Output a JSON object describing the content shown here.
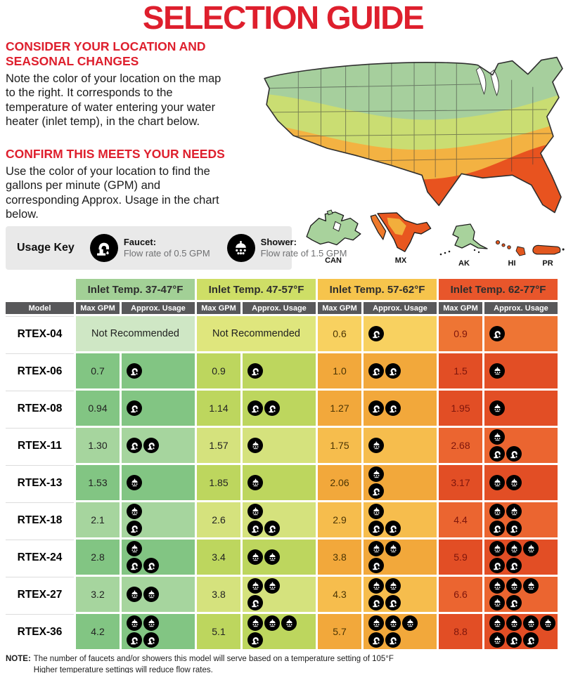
{
  "title": "SELECTION GUIDE",
  "theme": {
    "accent_red": "#de1f2d",
    "header_gray": "#58585a",
    "key_bg": "#e9e9e9"
  },
  "intro": {
    "section1": {
      "heading": "CONSIDER YOUR LOCATION AND SEASONAL CHANGES",
      "body": "Note the color of your location on the map to the right. It corresponds to the temperature of water entering your water heater (inlet temp), in the chart below."
    },
    "section2": {
      "heading": "CONFIRM THIS MEETS YOUR NEEDS",
      "body": "Use the color of your location to find the gallons per minute (GPM) and corresponding Approx. Usage in the chart below."
    }
  },
  "map": {
    "labels": [
      "CAN",
      "MX",
      "AK",
      "HI",
      "PR"
    ],
    "zone_colors": {
      "zone1": "#a6cf9d",
      "zone2": "#cadd72",
      "zone3": "#f3b242",
      "zone4": "#e8531f"
    }
  },
  "usage_key": {
    "label": "Usage Key",
    "faucet_label": "Faucet:",
    "faucet_desc": "Flow rate of 0.5 GPM",
    "shower_label": "Shower:",
    "shower_desc": "Flow rate of 1.5 GPM"
  },
  "table": {
    "model_header": "Model",
    "sub_headers": [
      "Max GPM",
      "Approx. Usage"
    ],
    "not_recommended": "Not Recommended",
    "groups": [
      {
        "label": "Inlet Temp. 37-47°F",
        "colors": {
          "header": "#a2d096",
          "pale": "#cfe7c5",
          "dark": "#82c583",
          "light": "#a6d59e",
          "text": "#222222"
        }
      },
      {
        "label": "Inlet Temp. 47-57°F",
        "colors": {
          "header": "#cede66",
          "pale": "#dfe67d",
          "dark": "#bdd65e",
          "light": "#d5e27d",
          "text": "#222222"
        }
      },
      {
        "label": "Inlet Temp. 57-62°F",
        "colors": {
          "header": "#f6c44c",
          "pale": "#f8d160",
          "dark": "#f2a83b",
          "light": "#f6bd4d",
          "text": "#4a3404"
        }
      },
      {
        "label": "Inlet Temp. 62-77°F",
        "colors": {
          "header": "#e8562b",
          "pale": "#ee7534",
          "dark": "#e24e25",
          "light": "#eb6530",
          "text": "#7d150c"
        }
      }
    ],
    "rows": [
      {
        "model": "RTEX-04",
        "shade": "pale",
        "cells": [
          {
            "nr": true
          },
          {
            "nr": true
          },
          {
            "gpm": "0.6",
            "usage": [
              [
                "faucet"
              ]
            ]
          },
          {
            "gpm": "0.9",
            "usage": [
              [
                "faucet"
              ]
            ]
          }
        ]
      },
      {
        "model": "RTEX-06",
        "shade": "dark",
        "cells": [
          {
            "gpm": "0.7",
            "usage": [
              [
                "faucet"
              ]
            ]
          },
          {
            "gpm": "0.9",
            "usage": [
              [
                "faucet"
              ]
            ]
          },
          {
            "gpm": "1.0",
            "usage": [
              [
                "faucet",
                "faucet"
              ]
            ]
          },
          {
            "gpm": "1.5",
            "usage": [
              [
                "shower"
              ]
            ]
          }
        ]
      },
      {
        "model": "RTEX-08",
        "shade": "dark",
        "cells": [
          {
            "gpm": "0.94",
            "usage": [
              [
                "faucet"
              ]
            ]
          },
          {
            "gpm": "1.14",
            "usage": [
              [
                "faucet",
                "faucet"
              ]
            ]
          },
          {
            "gpm": "1.27",
            "usage": [
              [
                "faucet",
                "faucet"
              ]
            ]
          },
          {
            "gpm": "1.95",
            "usage": [
              [
                "shower"
              ]
            ]
          }
        ]
      },
      {
        "model": "RTEX-11",
        "shade": "light",
        "cells": [
          {
            "gpm": "1.30",
            "usage": [
              [
                "faucet",
                "faucet"
              ]
            ]
          },
          {
            "gpm": "1.57",
            "usage": [
              [
                "shower"
              ]
            ]
          },
          {
            "gpm": "1.75",
            "usage": [
              [
                "shower"
              ]
            ]
          },
          {
            "gpm": "2.68",
            "usage": [
              [
                "shower"
              ],
              [
                "faucet",
                "faucet"
              ]
            ]
          }
        ]
      },
      {
        "model": "RTEX-13",
        "shade": "dark",
        "cells": [
          {
            "gpm": "1.53",
            "usage": [
              [
                "shower"
              ]
            ]
          },
          {
            "gpm": "1.85",
            "usage": [
              [
                "shower"
              ]
            ]
          },
          {
            "gpm": "2.06",
            "usage": [
              [
                "shower"
              ],
              [
                "faucet"
              ]
            ]
          },
          {
            "gpm": "3.17",
            "usage": [
              [
                "shower",
                "shower"
              ]
            ]
          }
        ]
      },
      {
        "model": "RTEX-18",
        "shade": "light",
        "cells": [
          {
            "gpm": "2.1",
            "usage": [
              [
                "shower"
              ],
              [
                "faucet"
              ]
            ]
          },
          {
            "gpm": "2.6",
            "usage": [
              [
                "shower"
              ],
              [
                "faucet",
                "faucet"
              ]
            ]
          },
          {
            "gpm": "2.9",
            "usage": [
              [
                "shower"
              ],
              [
                "faucet",
                "faucet"
              ]
            ]
          },
          {
            "gpm": "4.4",
            "usage": [
              [
                "shower",
                "shower"
              ],
              [
                "faucet",
                "faucet"
              ]
            ]
          }
        ]
      },
      {
        "model": "RTEX-24",
        "shade": "dark",
        "cells": [
          {
            "gpm": "2.8",
            "usage": [
              [
                "shower"
              ],
              [
                "faucet",
                "faucet"
              ]
            ]
          },
          {
            "gpm": "3.4",
            "usage": [
              [
                "shower",
                "shower"
              ]
            ]
          },
          {
            "gpm": "3.8",
            "usage": [
              [
                "shower",
                "shower"
              ],
              [
                "faucet"
              ]
            ]
          },
          {
            "gpm": "5.9",
            "usage": [
              [
                "shower",
                "shower",
                "shower"
              ],
              [
                "faucet",
                "faucet"
              ]
            ]
          }
        ]
      },
      {
        "model": "RTEX-27",
        "shade": "light",
        "cells": [
          {
            "gpm": "3.2",
            "usage": [
              [
                "shower",
                "shower"
              ]
            ]
          },
          {
            "gpm": "3.8",
            "usage": [
              [
                "shower",
                "shower"
              ],
              [
                "faucet"
              ]
            ]
          },
          {
            "gpm": "4.3",
            "usage": [
              [
                "shower",
                "shower"
              ],
              [
                "faucet",
                "faucet"
              ]
            ]
          },
          {
            "gpm": "6.6",
            "usage": [
              [
                "shower",
                "shower",
                "shower"
              ],
              [
                "shower",
                "faucet"
              ]
            ]
          }
        ]
      },
      {
        "model": "RTEX-36",
        "shade": "dark",
        "cells": [
          {
            "gpm": "4.2",
            "usage": [
              [
                "shower",
                "shower"
              ],
              [
                "faucet",
                "faucet"
              ]
            ]
          },
          {
            "gpm": "5.1",
            "usage": [
              [
                "shower",
                "shower",
                "shower"
              ],
              [
                "faucet"
              ]
            ]
          },
          {
            "gpm": "5.7",
            "usage": [
              [
                "shower",
                "shower",
                "shower"
              ],
              [
                "faucet",
                "faucet"
              ]
            ]
          },
          {
            "gpm": "8.8",
            "usage": [
              [
                "shower",
                "shower",
                "shower",
                "shower"
              ],
              [
                "shower",
                "faucet",
                "faucet"
              ]
            ]
          }
        ]
      }
    ]
  },
  "note": {
    "label": "NOTE:",
    "line1": "The number of faucets and/or showers this model will serve based on a temperature setting of 105°F",
    "line2": "Higher temperature settings will reduce flow rates."
  }
}
